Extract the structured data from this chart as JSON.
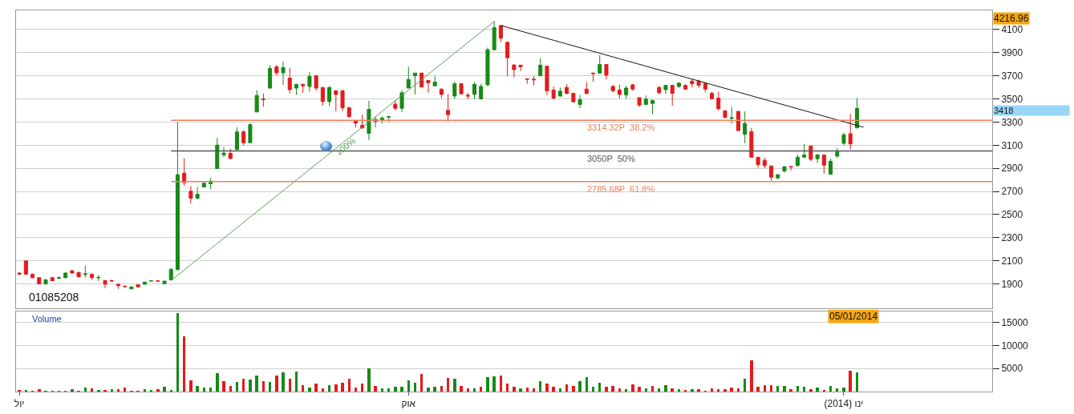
{
  "chart_data": [
    {
      "type": "candlestick",
      "categories": [
        null,
        null,
        null,
        null,
        null,
        null,
        null,
        null,
        null,
        null,
        null,
        null,
        null,
        null,
        null,
        null,
        null,
        null,
        null,
        null,
        null,
        null,
        null,
        null,
        null,
        null,
        null,
        null,
        null,
        null,
        null,
        null,
        null,
        null,
        null,
        null,
        null,
        null,
        null,
        null,
        null,
        null,
        null,
        null,
        null,
        null,
        null,
        null,
        null,
        null,
        null,
        null,
        null,
        null,
        null,
        null,
        null,
        null,
        null,
        null,
        null,
        null,
        null,
        null,
        null,
        null,
        null,
        null,
        null,
        null,
        null,
        null,
        null,
        null,
        null,
        null,
        null,
        null,
        null,
        null,
        null,
        null,
        null,
        null,
        null,
        null,
        null,
        null,
        null,
        null,
        null,
        null,
        null,
        null,
        null,
        null,
        null,
        null,
        null,
        null,
        null,
        null,
        null,
        null,
        null,
        null,
        null,
        null,
        null,
        null,
        null,
        null,
        null,
        null,
        null,
        null,
        null,
        null,
        null,
        null,
        null,
        null,
        null,
        null,
        null,
        null,
        null,
        null,
        null,
        null,
        null,
        null,
        null,
        null,
        null,
        null,
        null,
        null,
        null,
        null,
        null,
        null,
        null,
        null,
        null,
        null,
        null,
        null
      ],
      "ohlc": [
        [
          1995,
          2000,
          1980,
          1985
        ],
        [
          2100,
          2105,
          1980,
          1985
        ],
        [
          1985,
          1990,
          1950,
          1955
        ],
        [
          1955,
          1960,
          1898,
          1900
        ],
        [
          1900,
          1945,
          1898,
          1935
        ],
        [
          1955,
          1960,
          1925,
          1928
        ],
        [
          1950,
          1965,
          1945,
          1955
        ],
        [
          1955,
          2000,
          1950,
          1995
        ],
        [
          2015,
          2020,
          1990,
          1995
        ],
        [
          2000,
          2005,
          1958,
          1962
        ],
        [
          1983,
          2060,
          1955,
          1988
        ],
        [
          1985,
          1990,
          1935,
          1955
        ],
        [
          1953,
          1978,
          1925,
          1957
        ],
        [
          1930,
          1932,
          1863,
          1898
        ],
        [
          1930,
          1935,
          1920,
          1926
        ],
        [
          1898,
          1900,
          1858,
          1886
        ],
        [
          1882,
          1885,
          1870,
          1878
        ],
        [
          1858,
          1878,
          1856,
          1875
        ],
        [
          1893,
          1896,
          1870,
          1875
        ],
        [
          1898,
          1920,
          1895,
          1916
        ],
        [
          1925,
          1933,
          1922,
          1929
        ],
        [
          1929,
          1933,
          1920,
          1925
        ],
        [
          1902,
          1928,
          1900,
          1925
        ],
        [
          1937,
          2040,
          1930,
          2026
        ],
        [
          2024,
          3300,
          2020,
          2845
        ],
        [
          2858,
          2987,
          2748,
          2776
        ],
        [
          2702,
          2748,
          2596,
          2642
        ],
        [
          2642,
          2739,
          2633,
          2675
        ],
        [
          2739,
          2780,
          2735,
          2771
        ],
        [
          2767,
          2817,
          2721,
          2790
        ],
        [
          2898,
          3162,
          2895,
          3100
        ],
        [
          3016,
          3084,
          2998,
          3032
        ],
        [
          3030,
          3070,
          2978,
          2985
        ],
        [
          3063,
          3254,
          3047,
          3215
        ],
        [
          3215,
          3231,
          3098,
          3121
        ],
        [
          3121,
          3289,
          3118,
          3277
        ],
        [
          3387,
          3576,
          3385,
          3530
        ],
        [
          3500,
          3548,
          3433,
          3495
        ],
        [
          3594,
          3792,
          3590,
          3764
        ],
        [
          3778,
          3792,
          3702,
          3725
        ],
        [
          3725,
          3824,
          3622,
          3771
        ],
        [
          3679,
          3769,
          3548,
          3580
        ],
        [
          3594,
          3630,
          3535,
          3626
        ],
        [
          3626,
          3630,
          3553,
          3613
        ],
        [
          3608,
          3732,
          3564,
          3695
        ],
        [
          3700,
          3705,
          3571,
          3594
        ],
        [
          3599,
          3600,
          3442,
          3477
        ],
        [
          3477,
          3610,
          3438,
          3599
        ],
        [
          3569,
          3575,
          3392,
          3539
        ],
        [
          3569,
          3580,
          3396,
          3422
        ],
        [
          3424,
          3430,
          3340,
          3346
        ],
        [
          3307,
          3310,
          3254,
          3291
        ],
        [
          3272,
          3364,
          3242,
          3249
        ],
        [
          3203,
          3484,
          3144,
          3410
        ],
        [
          3306,
          3346,
          3254,
          3323
        ],
        [
          3318,
          3350,
          3288,
          3334
        ],
        [
          3343,
          3352,
          3300,
          3348
        ],
        [
          3454,
          3488,
          3401,
          3419
        ],
        [
          3419,
          3576,
          3387,
          3553
        ],
        [
          3594,
          3778,
          3594,
          3668
        ],
        [
          3700,
          3723,
          3539,
          3723
        ],
        [
          3723,
          3728,
          3600,
          3603
        ],
        [
          3659,
          3662,
          3553,
          3640
        ],
        [
          3613,
          3695,
          3610,
          3645
        ],
        [
          3585,
          3590,
          3507,
          3539
        ],
        [
          3401,
          3541,
          3305,
          3364
        ],
        [
          3525,
          3650,
          3498,
          3631
        ],
        [
          3631,
          3635,
          3540,
          3544
        ],
        [
          3532,
          3553,
          3498,
          3525
        ],
        [
          3539,
          3645,
          3498,
          3626
        ],
        [
          3500,
          3631,
          3498,
          3608
        ],
        [
          3622,
          3944,
          3610,
          3925
        ],
        [
          3925,
          4170,
          3920,
          4116
        ],
        [
          4134,
          4134,
          3990,
          4024
        ],
        [
          3990,
          3992,
          3695,
          3856
        ],
        [
          3794,
          3796,
          3686,
          3753
        ],
        [
          3792,
          3792,
          3741,
          3778
        ],
        [
          3674,
          3674,
          3631,
          3670
        ],
        [
          3670,
          3695,
          3617,
          3665
        ],
        [
          3700,
          3852,
          3695,
          3792
        ],
        [
          3783,
          3783,
          3534,
          3571
        ],
        [
          3576,
          3608,
          3493,
          3507
        ],
        [
          3525,
          3599,
          3516,
          3567
        ],
        [
          3599,
          3626,
          3539,
          3548
        ],
        [
          3548,
          3548,
          3475,
          3475
        ],
        [
          3452,
          3534,
          3420,
          3493
        ],
        [
          3585,
          3645,
          3546,
          3546
        ],
        [
          3723,
          3728,
          3649,
          3718
        ],
        [
          3723,
          3879,
          3718,
          3797
        ],
        [
          3797,
          3797,
          3668,
          3705
        ],
        [
          3608,
          3622,
          3557,
          3571
        ],
        [
          3576,
          3622,
          3502,
          3539
        ],
        [
          3534,
          3613,
          3500,
          3594
        ],
        [
          3622,
          3631,
          3571,
          3585
        ],
        [
          3511,
          3511,
          3429,
          3447
        ],
        [
          3452,
          3530,
          3447,
          3498
        ],
        [
          3461,
          3488,
          3369,
          3488
        ],
        [
          3599,
          3613,
          3539,
          3553
        ],
        [
          3580,
          3617,
          3544,
          3617
        ],
        [
          3617,
          3617,
          3442,
          3548
        ],
        [
          3608,
          3645,
          3594,
          3636
        ],
        [
          3617,
          3626,
          3576,
          3585
        ],
        [
          3654,
          3668,
          3599,
          3631
        ],
        [
          3654,
          3668,
          3599,
          3617
        ],
        [
          3636,
          3640,
          3557,
          3585
        ],
        [
          3548,
          3562,
          3493,
          3502
        ],
        [
          3507,
          3562,
          3401,
          3415
        ],
        [
          3397,
          3401,
          3332,
          3341
        ],
        [
          3332,
          3431,
          3286,
          3337
        ],
        [
          3392,
          3392,
          3226,
          3226
        ],
        [
          3194,
          3392,
          3116,
          3286
        ],
        [
          3217,
          3249,
          2996,
          2996
        ],
        [
          2996,
          2996,
          2904,
          2932
        ],
        [
          2969,
          2992,
          2900,
          2923
        ],
        [
          2921,
          2921,
          2794,
          2824
        ],
        [
          2817,
          2849,
          2803,
          2845
        ],
        [
          2877,
          2918,
          2863,
          2914
        ],
        [
          2916,
          2918,
          2882,
          2912
        ],
        [
          2923,
          3019,
          2918,
          2996
        ],
        [
          2996,
          3111,
          2992,
          3015
        ],
        [
          3093,
          3093,
          2960,
          2978
        ],
        [
          2983,
          3024,
          2946,
          3015
        ],
        [
          3015,
          3015,
          2854,
          2928
        ],
        [
          2849,
          2983,
          2845,
          2960
        ],
        [
          3006,
          3075,
          2990,
          3042
        ],
        [
          3116,
          3208,
          3102,
          3190
        ],
        [
          3199,
          3369,
          3065,
          3111
        ],
        [
          3249,
          3507,
          3249,
          3418
        ],
        null,
        null,
        null,
        null,
        null,
        null,
        null,
        null,
        null,
        null,
        null,
        null,
        null,
        null,
        null,
        null,
        null,
        null,
        null,
        null
      ],
      "colors": [
        "#e41b1b",
        "#e41b1b",
        "#e41b1b",
        "#e41b1b",
        "#178a17",
        "#e41b1b",
        "#178a17",
        "#178a17",
        "#e41b1b",
        "#e41b1b",
        "#178a17",
        "#e41b1b",
        "#178a17",
        "#e41b1b",
        "#e41b1b",
        "#e41b1b",
        "#e41b1b",
        "#178a17",
        "#e41b1b",
        "#178a17",
        "#178a17",
        "#e41b1b",
        "#178a17",
        "#178a17",
        "#178a17",
        "#e41b1b",
        "#e41b1b",
        "#178a17",
        "#178a17",
        "#178a17",
        "#178a17",
        "#178a17",
        "#e41b1b",
        "#178a17",
        "#e41b1b",
        "#178a17",
        "#178a17",
        "#e41b1b",
        "#178a17",
        "#e41b1b",
        "#178a17",
        "#e41b1b",
        "#178a17",
        "#e41b1b",
        "#178a17",
        "#e41b1b",
        "#e41b1b",
        "#178a17",
        "#e41b1b",
        "#e41b1b",
        "#e41b1b",
        "#e41b1b",
        "#e41b1b",
        "#178a17",
        "#178a17",
        "#178a17",
        "#178a17",
        "#e41b1b",
        "#178a17",
        "#178a17",
        "#178a17",
        "#e41b1b",
        "#e41b1b",
        "#178a17",
        "#e41b1b",
        "#e41b1b",
        "#178a17",
        "#e41b1b",
        "#e41b1b",
        "#178a17",
        "#178a17",
        "#178a17",
        "#178a17",
        "#e41b1b",
        "#e41b1b",
        "#e41b1b",
        "#e41b1b",
        "#e41b1b",
        "#e41b1b",
        "#178a17",
        "#e41b1b",
        "#e41b1b",
        "#178a17",
        "#e41b1b",
        "#e41b1b",
        "#178a17",
        "#e41b1b",
        "#e41b1b",
        "#178a17",
        "#e41b1b",
        "#e41b1b",
        "#e41b1b",
        "#178a17",
        "#e41b1b",
        "#e41b1b",
        "#178a17",
        "#178a17",
        "#e41b1b",
        "#178a17",
        "#e41b1b",
        "#178a17",
        "#e41b1b",
        "#e41b1b",
        "#e41b1b",
        "#e41b1b",
        "#e41b1b",
        "#e41b1b",
        "#e41b1b",
        "#178a17",
        "#e41b1b",
        "#178a17",
        "#e41b1b",
        "#e41b1b",
        "#e41b1b",
        "#e41b1b",
        "#178a17",
        "#178a17",
        "#e41b1b",
        "#178a17",
        "#178a17",
        "#e41b1b",
        "#178a17",
        "#e41b1b",
        "#178a17",
        "#178a17",
        "#178a17",
        "#e41b1b",
        "#178a17",
        null,
        null,
        null,
        null,
        null,
        null,
        null,
        null,
        null,
        null,
        null,
        null,
        null,
        null,
        null,
        null,
        null,
        null,
        null,
        null
      ],
      "series": [
        {
          "type": "line",
          "name": "100%",
          "color": "#5c9e5c",
          "values": [
            null,
            null,
            null,
            null,
            null,
            null,
            null,
            null,
            null,
            null,
            null,
            null,
            null,
            null,
            null,
            null,
            null,
            null,
            null,
            null,
            null,
            null,
            null,
            1930,
            1976,
            2021,
            2067,
            2113,
            2159,
            2204,
            2250,
            2296,
            2341,
            2387,
            2433,
            2479,
            2524,
            2570,
            2616,
            2661,
            2707,
            2753,
            2799,
            2844,
            2890,
            2936,
            2981,
            3027,
            3073,
            3119,
            3164,
            3210,
            3256,
            3301,
            3347,
            3393,
            3439,
            3484,
            3530,
            3576,
            3621,
            3667,
            3713,
            3759,
            3804,
            3850,
            3896,
            3941,
            3987,
            4033,
            4079,
            4124,
            4170,
            null,
            null,
            null,
            null,
            null,
            null,
            null,
            null,
            null,
            null,
            null,
            null,
            null,
            null,
            null,
            null,
            null,
            null,
            null,
            null,
            null,
            null,
            null,
            null,
            null,
            null,
            null,
            null,
            null,
            null,
            null,
            null,
            null,
            null,
            null,
            null,
            null,
            null,
            null,
            null,
            null,
            null,
            null,
            null,
            null,
            null,
            null,
            null,
            null,
            null,
            null,
            null,
            null,
            null,
            null,
            null,
            null,
            null,
            null,
            null,
            null,
            null,
            null,
            null,
            null,
            null,
            null,
            null,
            null,
            null,
            null,
            null,
            null,
            null,
            null
          ]
        },
        {
          "type": "line",
          "color": "#111111",
          "values": [
            null,
            null,
            null,
            null,
            null,
            null,
            null,
            null,
            null,
            null,
            null,
            null,
            null,
            null,
            null,
            null,
            null,
            null,
            null,
            null,
            null,
            null,
            null,
            null,
            null,
            null,
            null,
            null,
            null,
            null,
            null,
            null,
            null,
            null,
            null,
            null,
            null,
            null,
            null,
            null,
            null,
            null,
            null,
            null,
            null,
            null,
            null,
            null,
            null,
            null,
            null,
            null,
            null,
            null,
            null,
            null,
            null,
            null,
            null,
            null,
            null,
            null,
            null,
            null,
            null,
            null,
            null,
            null,
            null,
            null,
            null,
            null,
            null,
            4135,
            4119,
            4103,
            4087,
            4071,
            4055,
            4039,
            4023,
            4007,
            3991,
            3975,
            3959,
            3943,
            3927,
            3911,
            3895,
            3879,
            3863,
            3847,
            3831,
            3815,
            3799,
            3783,
            3767,
            3751,
            3735,
            3719,
            3703,
            3687,
            3671,
            3655,
            3639,
            3623,
            3607,
            3591,
            3575,
            3559,
            3543,
            3527,
            3511,
            3495,
            3479,
            3463,
            3447,
            3431,
            3415,
            3399,
            3383,
            3367,
            3351,
            3335,
            3319,
            3303,
            3287,
            3271,
            3255,
            null,
            null,
            null,
            null,
            null,
            null,
            null,
            null,
            null,
            null,
            null,
            null,
            null,
            null,
            null,
            null,
            null,
            null,
            null
          ]
        }
      ],
      "ref_lines": [
        {
          "axis": "y",
          "value": 3314.32,
          "label": "3314.32P  38.2%",
          "color": "#e8825e"
        },
        {
          "axis": "y",
          "value": 3050,
          "label": "3050P  50%",
          "color": "#555555"
        },
        {
          "axis": "y",
          "value": 2785.68,
          "label": "2785.68P  61.8%",
          "color": "#e8825e"
        }
      ],
      "annotations": [
        "01085208",
        "4216.96",
        "3418"
      ],
      "ylim": [
        1690,
        4265
      ],
      "yticks": [
        1900,
        2100,
        2300,
        2500,
        2700,
        2900,
        3100,
        3300,
        3500,
        3700,
        3900,
        4100
      ],
      "grid": "y",
      "tick_labels": "y"
    },
    {
      "type": "bar",
      "title": "Volume",
      "categories": [
        "יול",
        null,
        null,
        null,
        null,
        null,
        null,
        null,
        null,
        null,
        null,
        null,
        null,
        null,
        null,
        null,
        null,
        null,
        null,
        null,
        null,
        null,
        null,
        null,
        null,
        null,
        null,
        null,
        null,
        null,
        null,
        null,
        null,
        null,
        null,
        null,
        null,
        null,
        null,
        null,
        null,
        null,
        null,
        null,
        null,
        null,
        null,
        null,
        null,
        null,
        null,
        null,
        null,
        null,
        null,
        null,
        null,
        null,
        null,
        "אוק",
        null,
        null,
        null,
        null,
        null,
        null,
        null,
        null,
        null,
        null,
        null,
        null,
        null,
        null,
        null,
        null,
        null,
        null,
        null,
        null,
        null,
        null,
        null,
        null,
        null,
        null,
        null,
        null,
        null,
        null,
        null,
        null,
        null,
        null,
        null,
        null,
        null,
        null,
        null,
        null,
        null,
        null,
        null,
        null,
        null,
        null,
        null,
        null,
        null,
        null,
        null,
        null,
        null,
        null,
        null,
        null,
        null,
        null,
        null,
        null,
        null,
        null,
        null,
        null,
        null,
        "ינו (2014)",
        null,
        null,
        null,
        null,
        null,
        null,
        null,
        null,
        null,
        null,
        null,
        null,
        null,
        null,
        null,
        null,
        null,
        null,
        null,
        null,
        null,
        null
      ],
      "values": [
        300,
        300,
        100,
        500,
        100,
        100,
        100,
        100,
        500,
        100,
        800,
        700,
        300,
        300,
        500,
        500,
        900,
        100,
        100,
        500,
        300,
        500,
        1000,
        300,
        17000,
        12000,
        2400,
        1200,
        800,
        800,
        4000,
        2300,
        1200,
        2100,
        2800,
        2600,
        3500,
        2300,
        2100,
        3500,
        4200,
        2800,
        4400,
        1400,
        800,
        1700,
        700,
        1400,
        1500,
        1900,
        2800,
        800,
        1700,
        5000,
        1200,
        700,
        700,
        1000,
        1000,
        2500,
        1900,
        3900,
        800,
        1000,
        1200,
        3000,
        2800,
        1200,
        700,
        700,
        1000,
        3100,
        3300,
        3500,
        1700,
        1000,
        700,
        900,
        700,
        2200,
        1700,
        1000,
        700,
        1500,
        1200,
        2200,
        3100,
        1000,
        1900,
        1000,
        1200,
        700,
        500,
        1500,
        1000,
        700,
        1200,
        700,
        1400,
        700,
        500,
        300,
        500,
        500,
        100,
        700,
        500,
        500,
        800,
        700,
        2800,
        6800,
        1000,
        1400,
        1400,
        1200,
        1200,
        500,
        1200,
        1000,
        500,
        800,
        300,
        1200,
        700,
        800,
        4600,
        4100,
        null,
        null,
        null,
        null,
        null,
        null,
        null,
        null,
        null,
        null,
        null,
        null,
        null,
        null,
        null,
        null,
        null,
        null,
        null,
        null
      ],
      "colors": [
        "#e41b1b",
        "#178a17",
        "#e41b1b",
        "#e41b1b",
        "#178a17",
        "#e41b1b",
        "#178a17",
        "#178a17",
        "#178a17",
        "#e41b1b",
        "#178a17",
        "#e41b1b",
        "#178a17",
        "#e41b1b",
        "#178a17",
        "#e41b1b",
        "#e41b1b",
        "#e41b1b",
        "#e41b1b",
        "#178a17",
        "#178a17",
        "#e41b1b",
        "#178a17",
        "#178a17",
        "#178a17",
        "#e41b1b",
        "#e41b1b",
        "#178a17",
        "#178a17",
        "#178a17",
        "#178a17",
        "#e41b1b",
        "#e41b1b",
        "#178a17",
        "#e41b1b",
        "#178a17",
        "#178a17",
        "#e41b1b",
        "#178a17",
        "#e41b1b",
        "#178a17",
        "#e41b1b",
        "#178a17",
        "#e41b1b",
        "#178a17",
        "#e41b1b",
        "#e41b1b",
        "#178a17",
        "#e41b1b",
        "#e41b1b",
        "#e41b1b",
        "#e41b1b",
        "#e41b1b",
        "#178a17",
        "#e41b1b",
        "#178a17",
        "#178a17",
        "#178a17",
        "#178a17",
        "#178a17",
        "#178a17",
        "#e41b1b",
        "#178a17",
        "#178a17",
        "#e41b1b",
        "#e41b1b",
        "#178a17",
        "#e41b1b",
        "#e41b1b",
        "#178a17",
        "#e41b1b",
        "#178a17",
        "#178a17",
        "#e41b1b",
        "#e41b1b",
        "#e41b1b",
        "#178a17",
        "#e41b1b",
        "#e41b1b",
        "#178a17",
        "#e41b1b",
        "#e41b1b",
        "#178a17",
        "#e41b1b",
        "#e41b1b",
        "#178a17",
        "#178a17",
        "#178a17",
        "#178a17",
        "#e41b1b",
        "#e41b1b",
        "#e41b1b",
        "#178a17",
        "#e41b1b",
        "#e41b1b",
        "#178a17",
        "#e41b1b",
        "#178a17",
        "#178a17",
        "#e41b1b",
        "#178a17",
        "#e41b1b",
        "#178a17",
        "#e41b1b",
        "#e41b1b",
        "#e41b1b",
        "#e41b1b",
        "#e41b1b",
        "#e41b1b",
        "#e41b1b",
        "#178a17",
        "#e41b1b",
        "#e41b1b",
        "#e41b1b",
        "#e41b1b",
        "#178a17",
        "#178a17",
        "#e41b1b",
        "#178a17",
        "#178a17",
        "#e41b1b",
        "#178a17",
        "#e41b1b",
        "#178a17",
        "#178a17",
        "#178a17",
        "#e41b1b",
        "#178a17",
        null,
        null,
        null,
        null,
        null,
        null,
        null,
        null,
        null,
        null,
        null,
        null,
        null,
        null,
        null,
        null,
        null,
        null,
        null,
        null
      ],
      "annotations": [
        "05/01/2014"
      ],
      "ylim": [
        0,
        17400
      ],
      "yticks": [
        5000,
        10000,
        15000
      ],
      "grid": "y"
    }
  ]
}
